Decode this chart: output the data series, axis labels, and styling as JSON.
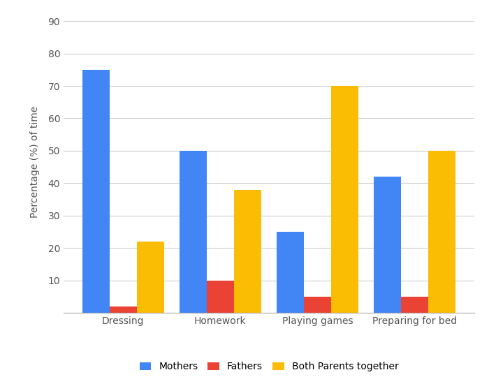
{
  "categories": [
    "Dressing",
    "Homework",
    "Playing games",
    "Preparing for bed"
  ],
  "series": {
    "Mothers": [
      75,
      50,
      25,
      42
    ],
    "Fathers": [
      2,
      10,
      5,
      5
    ],
    "Both Parents together": [
      22,
      38,
      70,
      50
    ]
  },
  "colors": {
    "Mothers": "#4285F4",
    "Fathers": "#EA4335",
    "Both Parents together": "#FBBC04"
  },
  "ylabel": "Percentage (%) of time",
  "ylim": [
    0,
    93
  ],
  "yticks": [
    10,
    20,
    30,
    40,
    50,
    60,
    70,
    80,
    90
  ],
  "bar_width": 0.28,
  "background_color": "#ffffff",
  "grid_color": "#cccccc",
  "label_fontsize": 10,
  "tick_fontsize": 10,
  "legend_fontsize": 10
}
